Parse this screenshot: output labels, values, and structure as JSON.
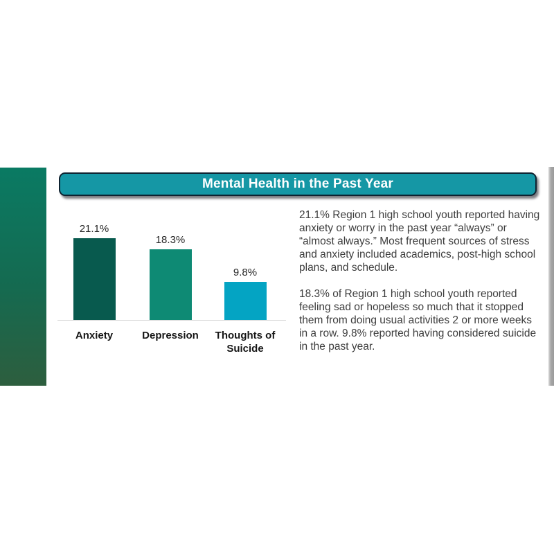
{
  "page": {
    "title_bar": {
      "label": "Mental Health in the Past Year",
      "fill_color": "#1597A5",
      "border_color": "#0E2230",
      "text_color": "#FFFFFF"
    },
    "accents": {
      "left_strip_top_color": "#0A7A63",
      "left_strip_bottom_color": "#2D5E3E",
      "right_strip_color": "#A6A6A6"
    }
  },
  "chart_data": {
    "type": "bar",
    "title": "Mental Health in the Past Year",
    "categories": [
      "Anxiety",
      "Depression",
      "Thoughts of Suicide"
    ],
    "values": [
      21.1,
      18.3,
      9.8
    ],
    "value_labels": [
      "21.1%",
      "18.3%",
      "9.8%"
    ],
    "colors": [
      "#085A4E",
      "#0E8A74",
      "#04A4C3"
    ],
    "xlabel": "",
    "ylabel": "",
    "ylim": [
      0,
      25
    ],
    "grid": false,
    "legend": false,
    "data_labels_position": "above-bar",
    "axis_line_color": "#D8D8D8"
  },
  "narrative": {
    "paragraph1": "21.1% Region 1 high school youth reported having anxiety or worry in the past year “always” or “almost always.” Most frequent sources of stress and anxiety included academics, post-high school plans, and schedule.",
    "paragraph2": "18.3% of Region 1 high school youth reported feeling sad or hopeless so much that it stopped them from doing usual activities 2 or more weeks in a row. 9.8% reported having considered suicide in the past year."
  }
}
